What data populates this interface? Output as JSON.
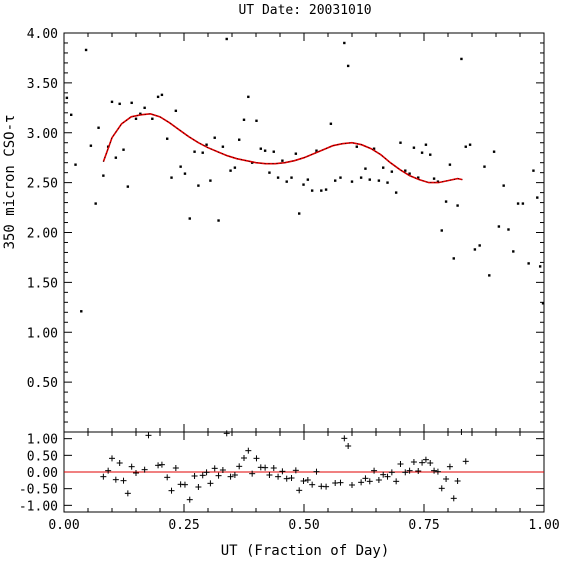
{
  "chart_data": {
    "type": "scatter",
    "title": "UT Date: 20031010",
    "xlabel": "UT (Fraction of Day)",
    "ylabel": "350 micron CSO-τ",
    "xlim": [
      0.0,
      1.0
    ],
    "ylim": [
      0.0,
      4.0
    ],
    "x_ticks": [
      "0.00",
      "0.25",
      "0.50",
      "0.75",
      "1.00"
    ],
    "y_ticks": [
      "0.50",
      "1.00",
      "1.50",
      "2.00",
      "2.50",
      "3.00",
      "3.50",
      "4.00"
    ],
    "fit_color": "#e00000",
    "point_color": "#000000",
    "points": [
      [
        0.006,
        3.35
      ],
      [
        0.015,
        3.18
      ],
      [
        0.024,
        2.68
      ],
      [
        0.036,
        1.21
      ],
      [
        0.046,
        3.83
      ],
      [
        0.056,
        2.87
      ],
      [
        0.066,
        2.29
      ],
      [
        0.072,
        3.05
      ],
      [
        0.082,
        2.57
      ],
      [
        0.092,
        2.86
      ],
      [
        0.1,
        3.31
      ],
      [
        0.108,
        2.75
      ],
      [
        0.116,
        3.29
      ],
      [
        0.124,
        2.83
      ],
      [
        0.133,
        2.46
      ],
      [
        0.141,
        3.3
      ],
      [
        0.15,
        3.14
      ],
      [
        0.159,
        3.19
      ],
      [
        0.168,
        3.25
      ],
      [
        0.184,
        3.14
      ],
      [
        0.196,
        3.36
      ],
      [
        0.204,
        3.38
      ],
      [
        0.215,
        2.94
      ],
      [
        0.224,
        2.55
      ],
      [
        0.233,
        3.22
      ],
      [
        0.243,
        2.66
      ],
      [
        0.252,
        2.59
      ],
      [
        0.262,
        2.14
      ],
      [
        0.272,
        2.81
      ],
      [
        0.28,
        2.47
      ],
      [
        0.289,
        2.8
      ],
      [
        0.297,
        2.88
      ],
      [
        0.305,
        2.52
      ],
      [
        0.314,
        2.95
      ],
      [
        0.322,
        2.12
      ],
      [
        0.331,
        2.86
      ],
      [
        0.339,
        3.94
      ],
      [
        0.347,
        2.62
      ],
      [
        0.356,
        2.65
      ],
      [
        0.365,
        2.93
      ],
      [
        0.375,
        3.13
      ],
      [
        0.384,
        3.36
      ],
      [
        0.392,
        2.7
      ],
      [
        0.401,
        3.12
      ],
      [
        0.41,
        2.84
      ],
      [
        0.419,
        2.82
      ],
      [
        0.428,
        2.6
      ],
      [
        0.437,
        2.81
      ],
      [
        0.446,
        2.55
      ],
      [
        0.455,
        2.72
      ],
      [
        0.464,
        2.51
      ],
      [
        0.474,
        2.55
      ],
      [
        0.483,
        2.79
      ],
      [
        0.49,
        2.19
      ],
      [
        0.499,
        2.48
      ],
      [
        0.508,
        2.53
      ],
      [
        0.517,
        2.42
      ],
      [
        0.526,
        2.82
      ],
      [
        0.536,
        2.42
      ],
      [
        0.546,
        2.43
      ],
      [
        0.556,
        3.09
      ],
      [
        0.565,
        2.52
      ],
      [
        0.576,
        2.55
      ],
      [
        0.584,
        3.9
      ],
      [
        0.592,
        3.67
      ],
      [
        0.6,
        2.51
      ],
      [
        0.61,
        2.86
      ],
      [
        0.619,
        2.55
      ],
      [
        0.628,
        2.64
      ],
      [
        0.637,
        2.53
      ],
      [
        0.646,
        2.84
      ],
      [
        0.656,
        2.52
      ],
      [
        0.665,
        2.65
      ],
      [
        0.674,
        2.5
      ],
      [
        0.683,
        2.61
      ],
      [
        0.692,
        2.4
      ],
      [
        0.701,
        2.9
      ],
      [
        0.711,
        2.62
      ],
      [
        0.72,
        2.59
      ],
      [
        0.729,
        2.85
      ],
      [
        0.738,
        2.55
      ],
      [
        0.746,
        2.8
      ],
      [
        0.754,
        2.88
      ],
      [
        0.763,
        2.78
      ],
      [
        0.771,
        2.54
      ],
      [
        0.779,
        2.51
      ],
      [
        0.787,
        2.02
      ],
      [
        0.796,
        2.31
      ],
      [
        0.804,
        2.68
      ],
      [
        0.812,
        1.74
      ],
      [
        0.82,
        2.27
      ],
      [
        0.828,
        3.74
      ],
      [
        0.837,
        2.86
      ],
      [
        0.846,
        2.88
      ],
      [
        0.856,
        1.83
      ],
      [
        0.866,
        1.87
      ],
      [
        0.876,
        2.66
      ],
      [
        0.886,
        1.57
      ],
      [
        0.896,
        2.81
      ],
      [
        0.906,
        2.06
      ],
      [
        0.916,
        2.47
      ],
      [
        0.926,
        2.03
      ],
      [
        0.936,
        1.81
      ],
      [
        0.946,
        2.29
      ],
      [
        0.956,
        2.29
      ],
      [
        0.968,
        1.69
      ],
      [
        0.978,
        2.62
      ],
      [
        0.986,
        2.35
      ],
      [
        0.992,
        1.66
      ],
      [
        0.998,
        1.29
      ]
    ],
    "fit": [
      [
        0.082,
        2.71
      ],
      [
        0.1,
        2.95
      ],
      [
        0.12,
        3.09
      ],
      [
        0.14,
        3.16
      ],
      [
        0.16,
        3.18
      ],
      [
        0.18,
        3.19
      ],
      [
        0.2,
        3.16
      ],
      [
        0.22,
        3.1
      ],
      [
        0.24,
        3.03
      ],
      [
        0.26,
        2.96
      ],
      [
        0.28,
        2.9
      ],
      [
        0.3,
        2.85
      ],
      [
        0.32,
        2.81
      ],
      [
        0.34,
        2.77
      ],
      [
        0.36,
        2.74
      ],
      [
        0.38,
        2.72
      ],
      [
        0.4,
        2.7
      ],
      [
        0.42,
        2.69
      ],
      [
        0.44,
        2.69
      ],
      [
        0.46,
        2.7
      ],
      [
        0.48,
        2.72
      ],
      [
        0.5,
        2.75
      ],
      [
        0.52,
        2.79
      ],
      [
        0.54,
        2.83
      ],
      [
        0.56,
        2.87
      ],
      [
        0.58,
        2.89
      ],
      [
        0.6,
        2.9
      ],
      [
        0.62,
        2.88
      ],
      [
        0.64,
        2.84
      ],
      [
        0.66,
        2.78
      ],
      [
        0.68,
        2.7
      ],
      [
        0.7,
        2.63
      ],
      [
        0.72,
        2.57
      ],
      [
        0.74,
        2.53
      ],
      [
        0.76,
        2.5
      ],
      [
        0.78,
        2.5
      ],
      [
        0.8,
        2.52
      ],
      [
        0.82,
        2.54
      ],
      [
        0.83,
        2.53
      ]
    ],
    "residuals": {
      "ylim": [
        -1.2,
        1.2
      ],
      "y_ticks": [
        "1.00",
        "0.50",
        "0.00",
        "-0.50",
        "-1.00"
      ],
      "marker": "+",
      "points": [
        [
          0.082,
          -0.14
        ],
        [
          0.092,
          0.04
        ],
        [
          0.1,
          0.41
        ],
        [
          0.108,
          -0.23
        ],
        [
          0.116,
          0.27
        ],
        [
          0.124,
          -0.26
        ],
        [
          0.133,
          -0.64
        ],
        [
          0.141,
          0.16
        ],
        [
          0.15,
          -0.03
        ],
        [
          0.168,
          0.07
        ],
        [
          0.176,
          1.1
        ],
        [
          0.196,
          0.2
        ],
        [
          0.204,
          0.22
        ],
        [
          0.215,
          -0.16
        ],
        [
          0.224,
          -0.56
        ],
        [
          0.233,
          0.12
        ],
        [
          0.243,
          -0.37
        ],
        [
          0.252,
          -0.38
        ],
        [
          0.262,
          -0.83
        ],
        [
          0.272,
          -0.12
        ],
        [
          0.28,
          -0.45
        ],
        [
          0.289,
          -0.1
        ],
        [
          0.297,
          -0.01
        ],
        [
          0.305,
          -0.34
        ],
        [
          0.314,
          0.11
        ],
        [
          0.322,
          -0.11
        ],
        [
          0.331,
          0.06
        ],
        [
          0.339,
          1.16
        ],
        [
          0.347,
          -0.14
        ],
        [
          0.356,
          -0.09
        ],
        [
          0.365,
          0.17
        ],
        [
          0.375,
          0.42
        ],
        [
          0.384,
          0.64
        ],
        [
          0.392,
          -0.05
        ],
        [
          0.401,
          0.41
        ],
        [
          0.41,
          0.14
        ],
        [
          0.419,
          0.13
        ],
        [
          0.428,
          -0.09
        ],
        [
          0.437,
          0.12
        ],
        [
          0.446,
          -0.14
        ],
        [
          0.455,
          0.02
        ],
        [
          0.464,
          -0.2
        ],
        [
          0.474,
          -0.18
        ],
        [
          0.483,
          0.05
        ],
        [
          0.49,
          -0.55
        ],
        [
          0.499,
          -0.27
        ],
        [
          0.508,
          -0.24
        ],
        [
          0.517,
          -0.38
        ],
        [
          0.526,
          0.01
        ],
        [
          0.536,
          -0.43
        ],
        [
          0.546,
          -0.44
        ],
        [
          0.565,
          -0.33
        ],
        [
          0.576,
          -0.32
        ],
        [
          0.584,
          1.01
        ],
        [
          0.592,
          0.78
        ],
        [
          0.6,
          -0.39
        ],
        [
          0.61,
          1.25
        ],
        [
          0.619,
          -0.31
        ],
        [
          0.628,
          -0.19
        ],
        [
          0.637,
          -0.28
        ],
        [
          0.646,
          0.04
        ],
        [
          0.656,
          -0.24
        ],
        [
          0.665,
          -0.08
        ],
        [
          0.674,
          -0.14
        ],
        [
          0.683,
          -0.01
        ],
        [
          0.692,
          -0.28
        ],
        [
          0.701,
          0.24
        ],
        [
          0.711,
          -0.01
        ],
        [
          0.72,
          0.04
        ],
        [
          0.729,
          0.3
        ],
        [
          0.738,
          0.03
        ],
        [
          0.746,
          0.28
        ],
        [
          0.754,
          0.37
        ],
        [
          0.763,
          0.27
        ],
        [
          0.771,
          0.04
        ],
        [
          0.779,
          0.01
        ],
        [
          0.787,
          -0.49
        ],
        [
          0.796,
          -0.21
        ],
        [
          0.804,
          0.16
        ],
        [
          0.812,
          -0.79
        ],
        [
          0.82,
          -0.27
        ],
        [
          0.828,
          1.2
        ],
        [
          0.837,
          0.32
        ]
      ]
    }
  }
}
